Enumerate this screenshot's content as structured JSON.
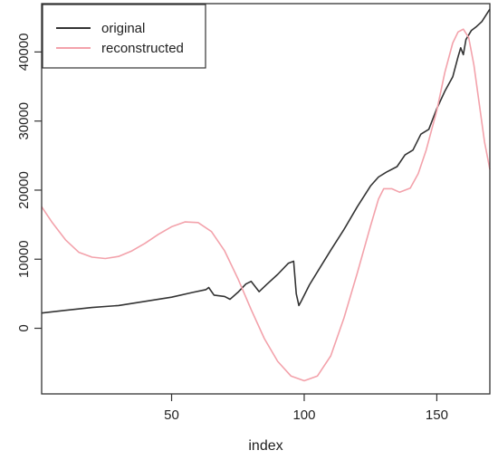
{
  "chart_data": {
    "type": "line",
    "title": "",
    "xlabel": "index",
    "ylabel": "",
    "xlim": [
      1,
      170
    ],
    "ylim": [
      -9500,
      47000
    ],
    "x_ticks": [
      50,
      100,
      150
    ],
    "y_ticks": [
      0,
      10000,
      20000,
      30000,
      40000
    ],
    "grid": false,
    "legend_position": "top-left",
    "series": [
      {
        "name": "original",
        "color": "#333333",
        "points": [
          [
            1,
            2200
          ],
          [
            10,
            2600
          ],
          [
            20,
            3000
          ],
          [
            30,
            3300
          ],
          [
            40,
            3900
          ],
          [
            50,
            4500
          ],
          [
            58,
            5200
          ],
          [
            63,
            5600
          ],
          [
            64,
            5900
          ],
          [
            66,
            4800
          ],
          [
            70,
            4600
          ],
          [
            72,
            4200
          ],
          [
            75,
            5200
          ],
          [
            78,
            6400
          ],
          [
            80,
            6800
          ],
          [
            83,
            5300
          ],
          [
            86,
            6400
          ],
          [
            90,
            7800
          ],
          [
            94,
            9400
          ],
          [
            96,
            9700
          ],
          [
            97,
            5000
          ],
          [
            98,
            3300
          ],
          [
            99,
            4000
          ],
          [
            102,
            6300
          ],
          [
            106,
            8800
          ],
          [
            110,
            11300
          ],
          [
            115,
            14300
          ],
          [
            120,
            17600
          ],
          [
            125,
            20600
          ],
          [
            128,
            21900
          ],
          [
            131,
            22600
          ],
          [
            135,
            23400
          ],
          [
            138,
            25100
          ],
          [
            141,
            25800
          ],
          [
            144,
            28100
          ],
          [
            147,
            28800
          ],
          [
            150,
            31800
          ],
          [
            153,
            34300
          ],
          [
            156,
            36400
          ],
          [
            158,
            39300
          ],
          [
            159,
            40600
          ],
          [
            160,
            39600
          ],
          [
            161,
            41800
          ],
          [
            163,
            43100
          ],
          [
            165,
            43700
          ],
          [
            167,
            44400
          ],
          [
            170,
            46200
          ]
        ]
      },
      {
        "name": "reconstructed",
        "color": "#F3A2AB",
        "points": [
          [
            1,
            17600
          ],
          [
            5,
            15300
          ],
          [
            10,
            12800
          ],
          [
            15,
            11000
          ],
          [
            20,
            10300
          ],
          [
            25,
            10100
          ],
          [
            30,
            10400
          ],
          [
            35,
            11200
          ],
          [
            40,
            12300
          ],
          [
            45,
            13600
          ],
          [
            50,
            14700
          ],
          [
            55,
            15400
          ],
          [
            60,
            15300
          ],
          [
            65,
            14000
          ],
          [
            70,
            11200
          ],
          [
            75,
            7200
          ],
          [
            80,
            2700
          ],
          [
            85,
            -1500
          ],
          [
            90,
            -4800
          ],
          [
            95,
            -6900
          ],
          [
            100,
            -7600
          ],
          [
            105,
            -6900
          ],
          [
            110,
            -4000
          ],
          [
            115,
            1500
          ],
          [
            120,
            8000
          ],
          [
            125,
            14800
          ],
          [
            128,
            18700
          ],
          [
            130,
            20200
          ],
          [
            133,
            20200
          ],
          [
            136,
            19700
          ],
          [
            140,
            20300
          ],
          [
            143,
            22400
          ],
          [
            146,
            25800
          ],
          [
            150,
            31500
          ],
          [
            153,
            37000
          ],
          [
            156,
            41300
          ],
          [
            158,
            42900
          ],
          [
            160,
            43300
          ],
          [
            162,
            42100
          ],
          [
            164,
            38100
          ],
          [
            166,
            32500
          ],
          [
            168,
            27000
          ],
          [
            170,
            23000
          ]
        ]
      }
    ]
  }
}
